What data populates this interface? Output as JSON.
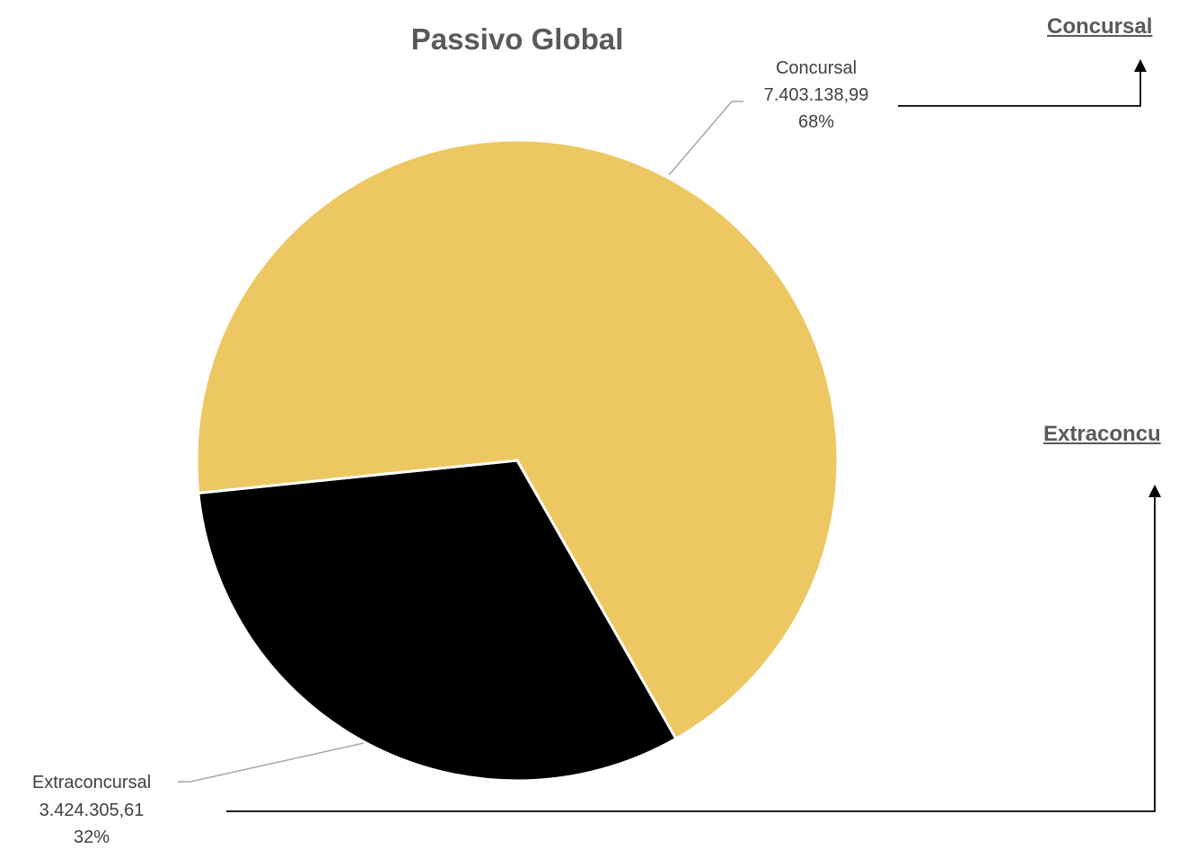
{
  "chart_data": {
    "type": "pie",
    "title": "Passivo Global",
    "slices": [
      {
        "label": "Concursal",
        "value": 7403138.99,
        "value_label": "7.403.138,99",
        "percent_label": "68%",
        "color": "#EDC761"
      },
      {
        "label": "Extraconcursal",
        "value": 3424305.61,
        "value_label": "3.424.305,61",
        "percent_label": "32%",
        "color": "#000000"
      }
    ],
    "legend": "none"
  },
  "side_links": {
    "concursal": "Concursal",
    "extraconcursal": "Extraconcu"
  }
}
